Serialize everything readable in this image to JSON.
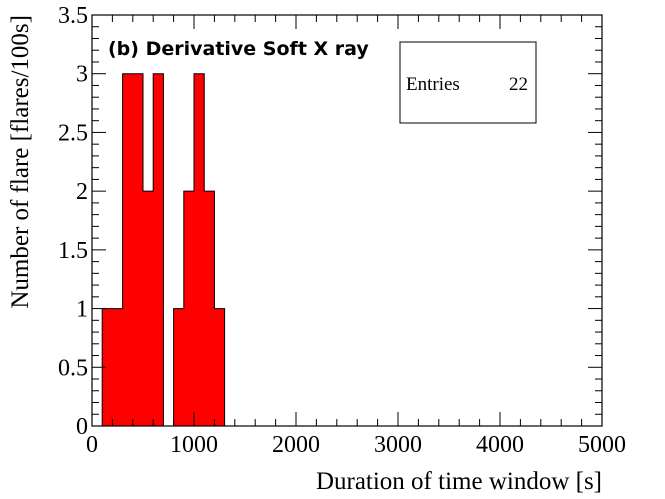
{
  "chart_data": {
    "type": "bar",
    "title": "(b)  Derivative Soft X ray",
    "xlabel": "Duration of time window [s]",
    "ylabel": "Number of flare [flares/100s]",
    "xlim": [
      0,
      5000
    ],
    "ylim": [
      0,
      3.5
    ],
    "x_ticks": [
      "0",
      "1000",
      "2000",
      "3000",
      "4000",
      "5000"
    ],
    "y_ticks": [
      "0",
      "0.5",
      "1",
      "1.5",
      "2",
      "2.5",
      "3",
      "3.5"
    ],
    "grid": false,
    "fill_color": "#ff0000",
    "bins": [
      {
        "low": 100,
        "high": 200,
        "count": 1
      },
      {
        "low": 200,
        "high": 300,
        "count": 1
      },
      {
        "low": 300,
        "high": 400,
        "count": 3
      },
      {
        "low": 400,
        "high": 500,
        "count": 3
      },
      {
        "low": 500,
        "high": 600,
        "count": 2
      },
      {
        "low": 600,
        "high": 700,
        "count": 3
      },
      {
        "low": 800,
        "high": 900,
        "count": 1
      },
      {
        "low": 900,
        "high": 1000,
        "count": 2
      },
      {
        "low": 1000,
        "high": 1100,
        "count": 3
      },
      {
        "low": 1100,
        "high": 1200,
        "count": 2
      },
      {
        "low": 1200,
        "high": 1300,
        "count": 1
      }
    ],
    "stats_box": {
      "label": "Entries",
      "value": "22"
    }
  }
}
